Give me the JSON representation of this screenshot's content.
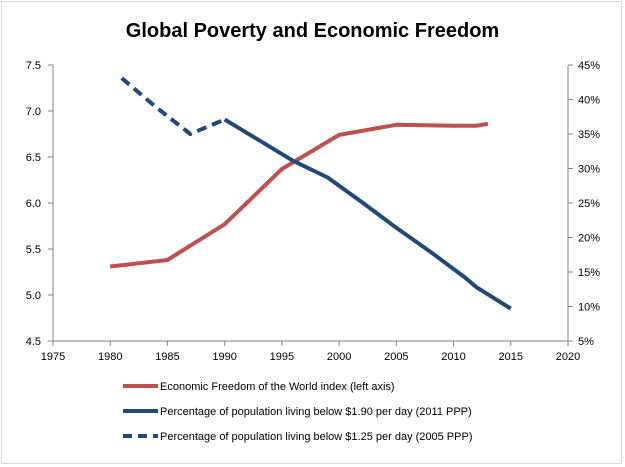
{
  "chart_data": {
    "type": "line",
    "title": "Global Poverty and Economic Freedom",
    "xlabel": "",
    "ylabel": "",
    "xlim": [
      1975,
      2020
    ],
    "x_ticks": [
      "1975",
      "1980",
      "1985",
      "1990",
      "1995",
      "2000",
      "2005",
      "2010",
      "2015",
      "2020"
    ],
    "ylim_left": [
      4.5,
      7.5
    ],
    "left_ticks": [
      "4.5",
      "5.0",
      "5.5",
      "6.0",
      "6.5",
      "7.0",
      "7.5"
    ],
    "ylim_right": [
      0.05,
      0.45
    ],
    "right_ticks": [
      "5%",
      "10%",
      "15%",
      "20%",
      "25%",
      "30%",
      "35%",
      "40%",
      "45%"
    ],
    "grid": false,
    "legend_position": "bottom",
    "series": [
      {
        "name": "Economic Freedom of the World index (left axis)",
        "axis": "left",
        "color": "#c0504d",
        "style": "solid",
        "points": [
          {
            "x": 1980,
            "y": 5.31
          },
          {
            "x": 1985,
            "y": 5.38
          },
          {
            "x": 1990,
            "y": 5.77
          },
          {
            "x": 1995,
            "y": 6.37
          },
          {
            "x": 2000,
            "y": 6.74
          },
          {
            "x": 2005,
            "y": 6.85
          },
          {
            "x": 2010,
            "y": 6.84
          },
          {
            "x": 2012,
            "y": 6.84
          },
          {
            "x": 2013,
            "y": 6.86
          }
        ]
      },
      {
        "name": "Percentage of population living below $1.90 per day (2011 PPP)",
        "axis": "right",
        "color": "#1f497d",
        "style": "solid",
        "points": [
          {
            "x": 1990,
            "y": 0.371
          },
          {
            "x": 1993,
            "y": 0.341
          },
          {
            "x": 1996,
            "y": 0.311
          },
          {
            "x": 1999,
            "y": 0.287
          },
          {
            "x": 2002,
            "y": 0.251
          },
          {
            "x": 2005,
            "y": 0.214
          },
          {
            "x": 2008,
            "y": 0.179
          },
          {
            "x": 2011,
            "y": 0.142
          },
          {
            "x": 2012,
            "y": 0.128
          },
          {
            "x": 2015,
            "y": 0.097
          }
        ]
      },
      {
        "name": "Percentage of population living below $1.25 per day (2005 PPP)",
        "axis": "right",
        "color": "#1f497d",
        "style": "dashed",
        "points": [
          {
            "x": 1981,
            "y": 0.431
          },
          {
            "x": 1984,
            "y": 0.389
          },
          {
            "x": 1987,
            "y": 0.35
          },
          {
            "x": 1990,
            "y": 0.371
          }
        ]
      }
    ]
  }
}
